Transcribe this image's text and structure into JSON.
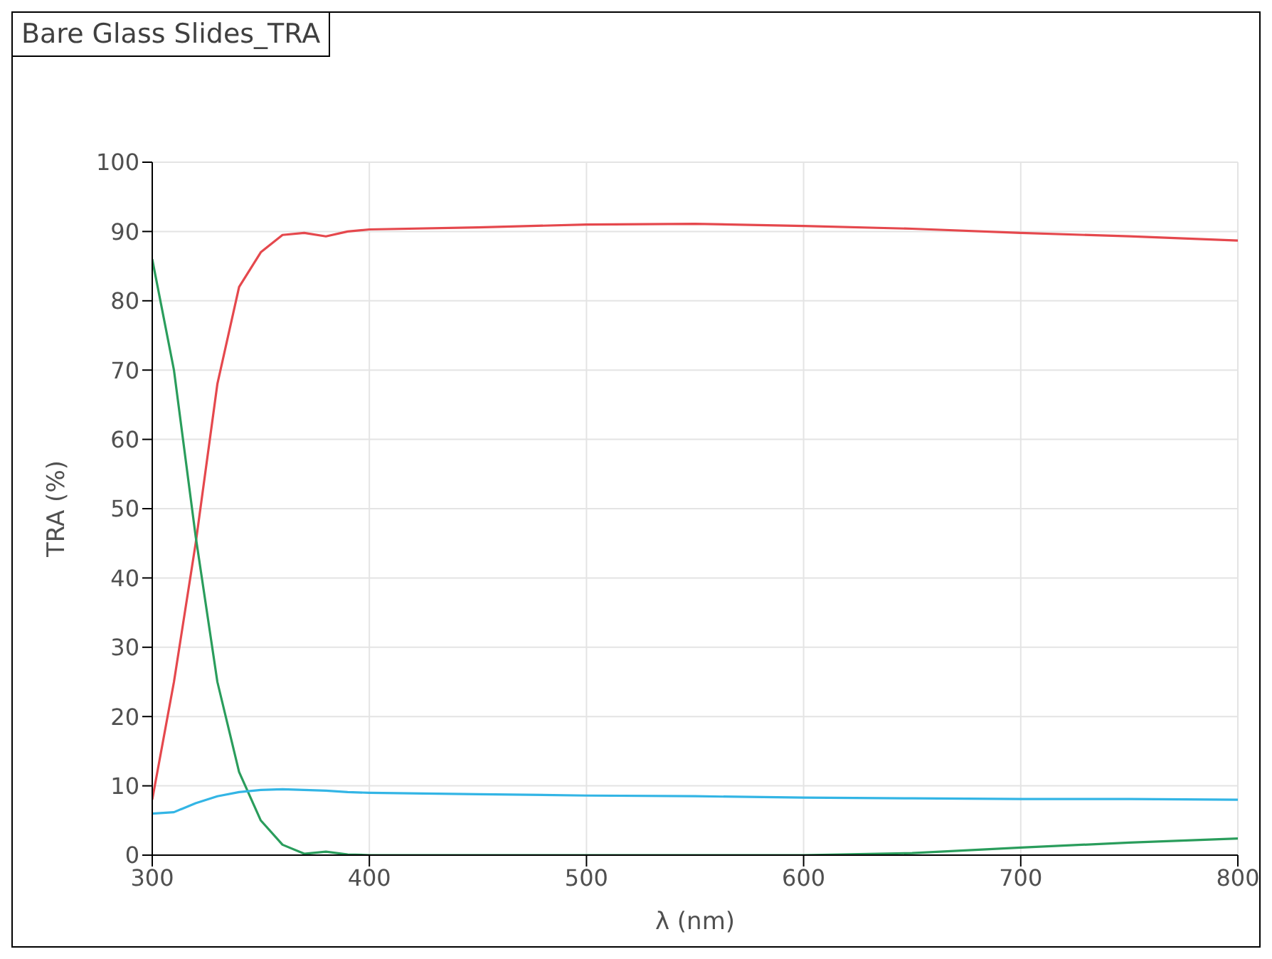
{
  "chart_data": {
    "type": "line",
    "title": "Bare Glass Slides_TRA",
    "xlabel": "λ (nm)",
    "ylabel": "TRA (%)",
    "x": [
      300,
      310,
      320,
      330,
      340,
      350,
      360,
      370,
      380,
      390,
      400,
      450,
      500,
      550,
      600,
      650,
      700,
      750,
      800
    ],
    "series": [
      {
        "color": "#e5484d",
        "values": [
          8,
          25,
          45,
          68,
          82,
          87,
          89.5,
          89.8,
          89.3,
          90,
          90.3,
          90.6,
          91,
          91.1,
          90.8,
          90.4,
          89.8,
          89.3,
          88.7
        ]
      },
      {
        "color": "#2a9d5c",
        "values": [
          86,
          70,
          46,
          25,
          12,
          5,
          1.5,
          0.2,
          0.5,
          0.1,
          0,
          0,
          0,
          0,
          0,
          0.3,
          1.1,
          1.8,
          2.4
        ]
      },
      {
        "color": "#33b5e5",
        "values": [
          6,
          6.2,
          7.5,
          8.5,
          9.1,
          9.4,
          9.5,
          9.4,
          9.3,
          9.1,
          9,
          8.8,
          8.6,
          8.5,
          8.3,
          8.2,
          8.1,
          8.1,
          8
        ]
      }
    ],
    "xlim": [
      300,
      800
    ],
    "xticks": [
      300,
      400,
      500,
      600,
      700,
      800
    ],
    "ylim": [
      0,
      100
    ],
    "yticks": [
      0,
      10,
      20,
      30,
      40,
      50,
      60,
      70,
      80,
      90,
      100
    ],
    "grid": true,
    "marker": "none",
    "line_style": "solid"
  }
}
